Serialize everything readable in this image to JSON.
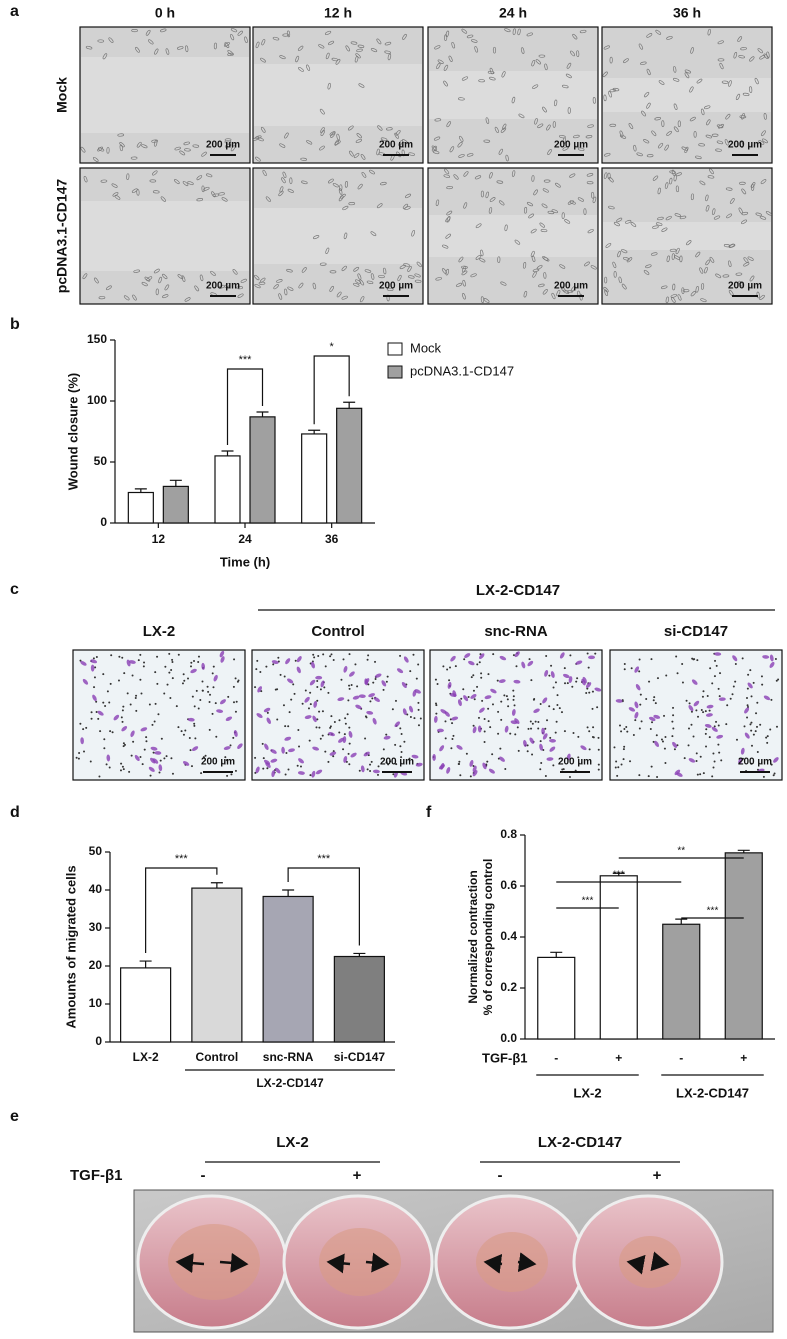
{
  "panel_labels": [
    "a",
    "b",
    "c",
    "d",
    "e",
    "f"
  ],
  "panel_a": {
    "columns": [
      "0 h",
      "12 h",
      "24 h",
      "36 h"
    ],
    "rows": [
      "Mock",
      "pcDNA3.1-CD147"
    ],
    "scale_bar": "200 µm"
  },
  "chart_data": [
    {
      "type": "bar",
      "ylabel": "Wound closure (%)",
      "xlabel": "Time (h)",
      "categories": [
        "12",
        "24",
        "36"
      ],
      "series": [
        {
          "name": "Mock",
          "color": "#ffffff",
          "values": [
            25,
            55,
            73
          ],
          "errors": [
            3,
            4,
            3
          ]
        },
        {
          "name": "pcDNA3.1-CD147",
          "color": "#a0a0a0",
          "values": [
            30,
            87,
            94
          ],
          "errors": [
            5,
            4,
            5
          ]
        }
      ],
      "ylim": [
        0,
        150
      ],
      "yticks": [
        0,
        50,
        100,
        150
      ],
      "annotations": [
        "***",
        "*"
      ]
    },
    {
      "type": "bar",
      "ylabel": "Amounts of migrated cells",
      "categories": [
        "LX-2",
        "Control",
        "snc-RNA",
        "si-CD147"
      ],
      "values": [
        19.5,
        40.5,
        38.3,
        22.5
      ],
      "errors": [
        1.8,
        1.4,
        1.7,
        0.8
      ],
      "colors": [
        "#ffffff",
        "#d9d9d9",
        "#a6a6b3",
        "#7f7f7f"
      ],
      "group_label": "LX-2-CD147",
      "ylim": [
        0,
        50
      ],
      "yticks": [
        0,
        10,
        20,
        30,
        40,
        50
      ],
      "annotations": [
        "***",
        "***"
      ]
    },
    {
      "type": "bar",
      "ylabel": [
        "Normalized contraction",
        "% of corresponding control"
      ],
      "row_label": "TGF-β1",
      "categories": [
        "-",
        "+",
        "-",
        "+"
      ],
      "groups": [
        "LX-2",
        "LX-2-CD147"
      ],
      "values": [
        0.32,
        0.64,
        0.45,
        0.73
      ],
      "errors": [
        0.02,
        0.01,
        0.02,
        0.01
      ],
      "colors": [
        "#ffffff",
        "#ffffff",
        "#a0a0a0",
        "#a0a0a0"
      ],
      "ylim": [
        0,
        0.8
      ],
      "yticks": [
        {
          "value": 0,
          "label": "0.0"
        },
        0.2,
        0.4,
        0.6,
        0.8
      ],
      "annotations": [
        "***",
        "***",
        "**",
        "***"
      ]
    }
  ],
  "panel_c": {
    "group": "LX-2-CD147",
    "columns": [
      "LX-2",
      "Control",
      "snc-RNA",
      "si-CD147"
    ],
    "scale_bar": "200 µm"
  },
  "panel_e": {
    "groups": [
      "LX-2",
      "LX-2-CD147"
    ],
    "row_label": "TGF-β1",
    "signs": [
      "-",
      "+",
      "-",
      "+"
    ]
  }
}
